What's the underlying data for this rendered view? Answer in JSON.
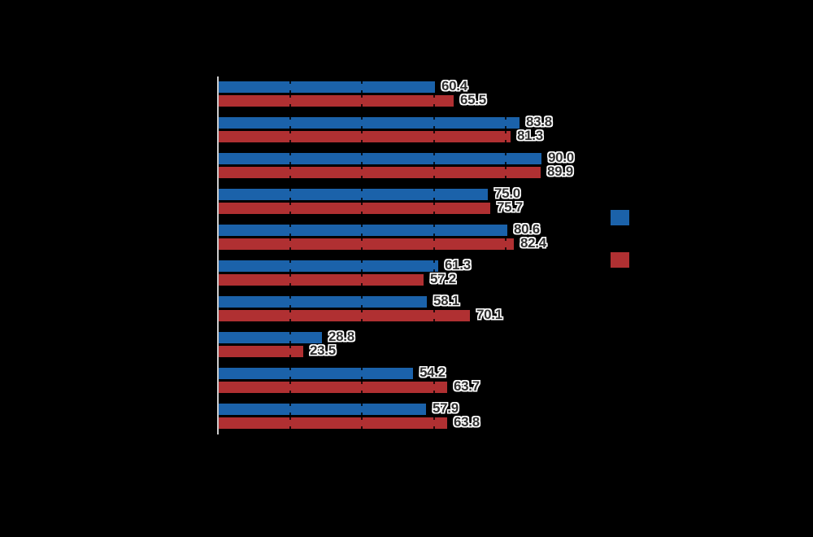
{
  "chart_data": {
    "type": "bar",
    "orientation": "horizontal",
    "background": "#000000",
    "axis_color": "#CCCCCC",
    "value_label_color": "#2F2F2F",
    "value_label_halo": "#FFFFFF",
    "xlim": [
      0,
      100
    ],
    "gridline_units": [
      20,
      40,
      60,
      80
    ],
    "categories": [
      "",
      "",
      "",
      "",
      "",
      "",
      "",
      "",
      "",
      ""
    ],
    "series": [
      {
        "name": "",
        "color": "#1B62AA",
        "values": [
          60.4,
          83.8,
          90.0,
          75.0,
          80.6,
          61.3,
          58.1,
          28.8,
          54.2,
          57.9
        ],
        "labels": [
          "60.4",
          "83.8",
          "90.0",
          "75.0",
          "80.6",
          "61.3",
          "58.1",
          "28.8",
          "54.2",
          "57.9"
        ]
      },
      {
        "name": "",
        "color": "#B03032",
        "values": [
          65.5,
          81.3,
          89.9,
          75.7,
          82.4,
          57.2,
          70.1,
          23.5,
          63.7,
          63.8
        ],
        "labels": [
          "65.5",
          "81.3",
          "89.9",
          "75.7",
          "82.4",
          "57.2",
          "70.1",
          "23.5",
          "63.7",
          "63.8"
        ]
      }
    ],
    "legend": {
      "entries": [
        {
          "label": "",
          "color": "#1B62AA"
        },
        {
          "label": "",
          "color": "#B03032"
        }
      ]
    }
  }
}
